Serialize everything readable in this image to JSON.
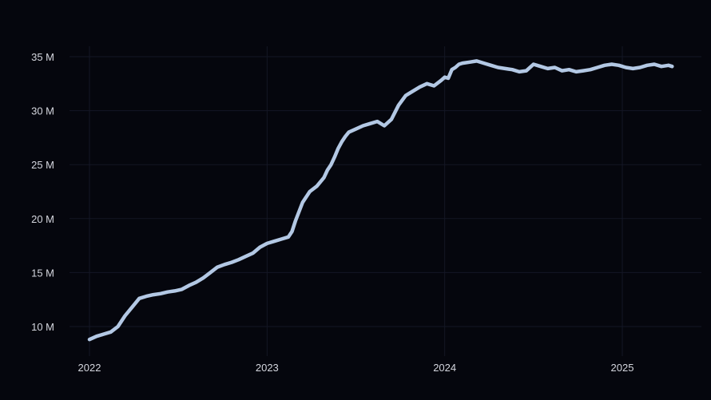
{
  "chart_data": {
    "type": "line",
    "title": "",
    "xlabel": "",
    "ylabel": "",
    "grid": true,
    "legend": "none",
    "colors": {
      "background": "#05060d",
      "line": "#b3c8e4",
      "grid": "#141725",
      "text": "#d4d6de"
    },
    "xlim": [
      2022.0,
      2025.35
    ],
    "ylim": [
      8.3,
      35.9
    ],
    "x_ticks": [
      {
        "value": 2022,
        "label": "2022"
      },
      {
        "value": 2023,
        "label": "2023"
      },
      {
        "value": 2024,
        "label": "2024"
      },
      {
        "value": 2025,
        "label": "2025"
      }
    ],
    "y_ticks": [
      {
        "value": 10,
        "label": "10 M"
      },
      {
        "value": 15,
        "label": "15 M"
      },
      {
        "value": 20,
        "label": "20 M"
      },
      {
        "value": 25,
        "label": "25 M"
      },
      {
        "value": 30,
        "label": "30 M"
      },
      {
        "value": 35,
        "label": "35 M"
      }
    ],
    "series": [
      {
        "x": [
          2022.0,
          2022.04,
          2022.08,
          2022.12,
          2022.16,
          2022.2,
          2022.24,
          2022.28,
          2022.32,
          2022.36,
          2022.4,
          2022.44,
          2022.48,
          2022.52,
          2022.56,
          2022.6,
          2022.64,
          2022.68,
          2022.72,
          2022.76,
          2022.8,
          2022.84,
          2022.88,
          2022.92,
          2022.96,
          2023.0,
          2023.04,
          2023.08,
          2023.12,
          2023.14,
          2023.16,
          2023.2,
          2023.24,
          2023.28,
          2023.32,
          2023.34,
          2023.36,
          2023.38,
          2023.4,
          2023.42,
          2023.44,
          2023.46,
          2023.5,
          2023.54,
          2023.58,
          2023.62,
          2023.66,
          2023.7,
          2023.74,
          2023.78,
          2023.82,
          2023.86,
          2023.9,
          2023.94,
          2023.98,
          2024.0,
          2024.02,
          2024.04,
          2024.06,
          2024.08,
          2024.1,
          2024.14,
          2024.18,
          2024.22,
          2024.26,
          2024.3,
          2024.34,
          2024.38,
          2024.42,
          2024.46,
          2024.5,
          2024.54,
          2024.58,
          2024.62,
          2024.66,
          2024.7,
          2024.74,
          2024.78,
          2024.82,
          2024.86,
          2024.9,
          2024.94,
          2024.98,
          2025.02,
          2025.06,
          2025.1,
          2025.14,
          2025.18,
          2025.22,
          2025.26,
          2025.28
        ],
        "values": [
          8.8,
          9.1,
          9.3,
          9.5,
          10.0,
          11.0,
          11.8,
          12.6,
          12.8,
          12.95,
          13.05,
          13.2,
          13.3,
          13.45,
          13.8,
          14.1,
          14.5,
          15.0,
          15.5,
          15.75,
          15.95,
          16.2,
          16.5,
          16.8,
          17.35,
          17.7,
          17.9,
          18.1,
          18.3,
          18.8,
          19.8,
          21.5,
          22.5,
          23.0,
          23.8,
          24.5,
          25.0,
          25.7,
          26.5,
          27.1,
          27.6,
          28.0,
          28.3,
          28.6,
          28.8,
          29.0,
          28.6,
          29.2,
          30.5,
          31.4,
          31.8,
          32.2,
          32.5,
          32.3,
          32.8,
          33.1,
          33.0,
          33.8,
          34.0,
          34.3,
          34.4,
          34.5,
          34.6,
          34.4,
          34.2,
          34.0,
          33.9,
          33.8,
          33.6,
          33.7,
          34.3,
          34.1,
          33.9,
          34.0,
          33.7,
          33.8,
          33.6,
          33.7,
          33.8,
          34.0,
          34.2,
          34.3,
          34.2,
          34.0,
          33.9,
          34.0,
          34.2,
          34.3,
          34.1,
          34.2,
          34.1
        ]
      }
    ]
  }
}
